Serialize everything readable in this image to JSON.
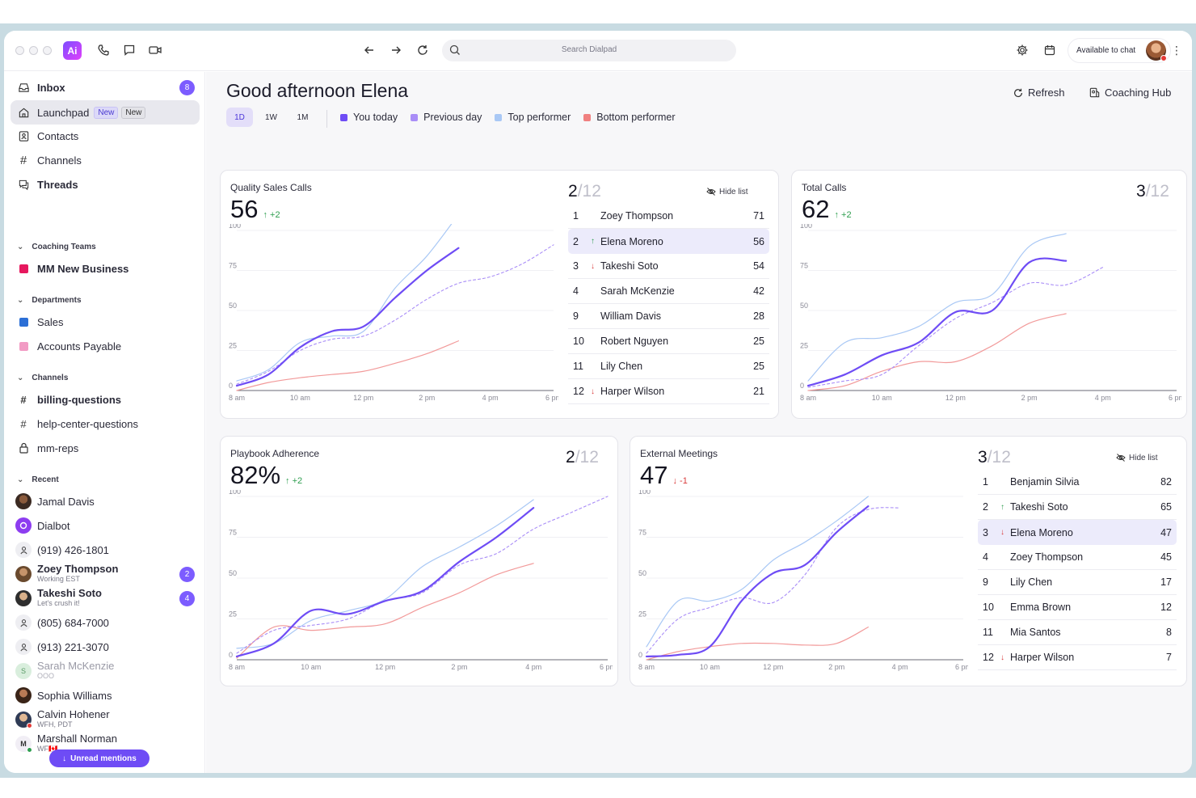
{
  "topbar": {
    "search_placeholder": "Search Dialpad",
    "status_label": "Available to chat",
    "logo_text": "Ai"
  },
  "sidebar": {
    "inbox": {
      "label": "Inbox",
      "badge": "8"
    },
    "launchpad": {
      "label": "Launchpad",
      "pill1": "New",
      "pill2": "New"
    },
    "contacts": "Contacts",
    "channels_top": "Channels",
    "threads": "Threads",
    "coaching_section": "Coaching Teams",
    "coaching_item": "MM New Business",
    "departments_section": "Departments",
    "dept_sales": "Sales",
    "dept_ap": "Accounts Payable",
    "channels_section": "Channels",
    "ch1": "billing-questions",
    "ch2": "help-center-questions",
    "ch3": "mm-reps",
    "recent_section": "Recent",
    "recent": [
      {
        "name": "Jamal Davis"
      },
      {
        "name": "Dialbot"
      },
      {
        "name": "(919) 426-1801"
      },
      {
        "name": "Zoey Thompson",
        "sub": "Working EST",
        "badge": "2"
      },
      {
        "name": "Takeshi Soto",
        "sub": "Let's crush it!",
        "badge": "4"
      },
      {
        "name": "(805) 684-7000"
      },
      {
        "name": "(913) 221-3070"
      },
      {
        "name": "Sarah McKenzie",
        "sub": "OOO"
      },
      {
        "name": "Sophia Williams"
      },
      {
        "name": "Calvin Hohener",
        "sub": "WFH, PDT"
      },
      {
        "name": "Marshall Norman",
        "sub": "WF🇨🇦"
      }
    ],
    "unread_button": "Unread mentions"
  },
  "main": {
    "greeting": "Good afternoon Elena",
    "refresh": "Refresh",
    "coaching_hub": "Coaching Hub",
    "ranges": [
      "1D",
      "1W",
      "1M"
    ],
    "selected_range": "1D",
    "legend": [
      {
        "label": "You today",
        "color": "#6e4cf5"
      },
      {
        "label": "Previous day",
        "color": "#a98df7"
      },
      {
        "label": "Top performer",
        "color": "#a9c8f5"
      },
      {
        "label": "Bottom performer",
        "color": "#f08080"
      }
    ]
  },
  "cards": {
    "qsc": {
      "title": "Quality Sales Calls",
      "value": "56",
      "delta": "+2",
      "rank": "2",
      "rank_total": "/12",
      "hide_list": "Hide list",
      "list": [
        {
          "rank": "1",
          "arrow": "",
          "name": "Zoey Thompson",
          "score": "71"
        },
        {
          "rank": "2",
          "arrow": "↑",
          "name": "Elena Moreno",
          "score": "56",
          "highlight": true
        },
        {
          "rank": "3",
          "arrow": "↓",
          "name": "Takeshi Soto",
          "score": "54"
        },
        {
          "rank": "4",
          "arrow": "",
          "name": "Sarah McKenzie",
          "score": "42"
        },
        {
          "rank": "9",
          "arrow": "",
          "name": "William Davis",
          "score": "28"
        },
        {
          "rank": "10",
          "arrow": "",
          "name": "Robert Nguyen",
          "score": "25"
        },
        {
          "rank": "11",
          "arrow": "",
          "name": "Lily Chen",
          "score": "25"
        },
        {
          "rank": "12",
          "arrow": "↓",
          "name": "Harper Wilson",
          "score": "21"
        }
      ]
    },
    "tc": {
      "title": "Total Calls",
      "value": "62",
      "delta": "+2",
      "rank": "3",
      "rank_total": "/12"
    },
    "pa": {
      "title": "Playbook Adherence",
      "value": "82%",
      "delta": "+2",
      "rank": "2",
      "rank_total": "/12"
    },
    "em": {
      "title": "External Meetings",
      "value": "47",
      "delta": "-1",
      "rank": "3",
      "rank_total": "/12",
      "hide_list": "Hide list",
      "list": [
        {
          "rank": "1",
          "arrow": "",
          "name": "Benjamin Silvia",
          "score": "82"
        },
        {
          "rank": "2",
          "arrow": "↑",
          "name": "Takeshi Soto",
          "score": "65"
        },
        {
          "rank": "3",
          "arrow": "↓",
          "name": "Elena Moreno",
          "score": "47",
          "highlight": true
        },
        {
          "rank": "4",
          "arrow": "",
          "name": "Zoey Thompson",
          "score": "45"
        },
        {
          "rank": "9",
          "arrow": "",
          "name": "Lily Chen",
          "score": "17"
        },
        {
          "rank": "10",
          "arrow": "",
          "name": "Emma Brown",
          "score": "12"
        },
        {
          "rank": "11",
          "arrow": "",
          "name": "Mia Santos",
          "score": "8"
        },
        {
          "rank": "12",
          "arrow": "↓",
          "name": "Harper Wilson",
          "score": "7"
        }
      ]
    }
  },
  "chart_data": [
    {
      "type": "line",
      "id": "qsc",
      "x": [
        "8 am",
        "9 am",
        "10 am",
        "11 am",
        "12 pm",
        "1 pm",
        "2 pm",
        "3 pm",
        "4 pm",
        "5 pm",
        "6 pm"
      ],
      "x_ticks": [
        "8 am",
        "10 am",
        "12 pm",
        "2 pm",
        "4 pm",
        "6 pm"
      ],
      "y_ticks": [
        "0",
        "25",
        "50",
        "75",
        "100"
      ],
      "ylim": [
        0,
        100
      ],
      "series": [
        {
          "name": "You today",
          "values": [
            3,
            10,
            27,
            37,
            40,
            58,
            75,
            89,
            null,
            null,
            null
          ]
        },
        {
          "name": "Previous day",
          "values": [
            4,
            12,
            25,
            32,
            34,
            44,
            57,
            67,
            71,
            79,
            91
          ]
        },
        {
          "name": "Top performer",
          "values": [
            6,
            13,
            30,
            34,
            37,
            64,
            84,
            110,
            null,
            null,
            null
          ]
        },
        {
          "name": "Bottom performer",
          "values": [
            0,
            5,
            8,
            10,
            12,
            17,
            23,
            31,
            null,
            null,
            null
          ]
        }
      ]
    },
    {
      "type": "line",
      "id": "tc",
      "x": [
        "8 am",
        "9 am",
        "10 am",
        "11 am",
        "12 pm",
        "1 pm",
        "2 pm",
        "3 pm",
        "4 pm",
        "5 pm",
        "6 pm"
      ],
      "x_ticks": [
        "8 am",
        "10 am",
        "12 pm",
        "2 pm",
        "4 pm",
        "6 pm"
      ],
      "y_ticks": [
        "0",
        "25",
        "50",
        "75",
        "100"
      ],
      "ylim": [
        0,
        100
      ],
      "series": [
        {
          "name": "You today",
          "values": [
            3,
            10,
            22,
            30,
            49,
            50,
            80,
            81,
            null,
            null,
            null
          ]
        },
        {
          "name": "Previous day",
          "values": [
            2,
            6,
            10,
            28,
            45,
            55,
            67,
            66,
            77,
            null,
            null
          ]
        },
        {
          "name": "Top performer",
          "values": [
            6,
            30,
            33,
            40,
            55,
            60,
            90,
            98,
            null,
            null,
            null
          ]
        },
        {
          "name": "Bottom performer",
          "values": [
            0,
            3,
            12,
            18,
            18,
            28,
            42,
            48,
            null,
            null,
            null
          ]
        }
      ]
    },
    {
      "type": "line",
      "id": "pa",
      "x": [
        "8 am",
        "9 am",
        "10 am",
        "11 am",
        "12 pm",
        "1 pm",
        "2 pm",
        "3 pm",
        "4 pm",
        "5 pm",
        "6 pm"
      ],
      "x_ticks": [
        "8 am",
        "10 am",
        "12 pm",
        "2 pm",
        "4 pm",
        "6 pm"
      ],
      "y_ticks": [
        "0",
        "25",
        "50",
        "75",
        "100"
      ],
      "ylim": [
        0,
        100
      ],
      "series": [
        {
          "name": "You today",
          "values": [
            2,
            10,
            30,
            28,
            36,
            42,
            60,
            75,
            93,
            null,
            null
          ]
        },
        {
          "name": "Previous day",
          "values": [
            4,
            18,
            21,
            25,
            36,
            41,
            58,
            65,
            80,
            90,
            100
          ]
        },
        {
          "name": "Top performer",
          "values": [
            7,
            10,
            24,
            30,
            37,
            57,
            69,
            82,
            98,
            null,
            null
          ]
        },
        {
          "name": "Bottom performer",
          "values": [
            1,
            20,
            18,
            20,
            22,
            32,
            41,
            52,
            59,
            null,
            null
          ]
        }
      ]
    },
    {
      "type": "line",
      "id": "em",
      "x": [
        "8 am",
        "9 am",
        "10 am",
        "11 am",
        "12 pm",
        "1 pm",
        "2 pm",
        "3 pm",
        "4 pm",
        "5 pm",
        "6 pm"
      ],
      "x_ticks": [
        "8 am",
        "10 am",
        "12 pm",
        "2 pm",
        "4 pm",
        "6 pm"
      ],
      "y_ticks": [
        "0",
        "25",
        "50",
        "75",
        "100"
      ],
      "ylim": [
        0,
        100
      ],
      "series": [
        {
          "name": "You today",
          "values": [
            2,
            3,
            8,
            36,
            53,
            58,
            78,
            94,
            null,
            null,
            null
          ]
        },
        {
          "name": "Previous day",
          "values": [
            4,
            25,
            32,
            38,
            35,
            52,
            81,
            92,
            93,
            null,
            null
          ]
        },
        {
          "name": "Top performer",
          "values": [
            8,
            36,
            36,
            43,
            61,
            72,
            85,
            100,
            null,
            null,
            null
          ]
        },
        {
          "name": "Bottom performer",
          "values": [
            0,
            5,
            8,
            10,
            10,
            9,
            10,
            20,
            null,
            null,
            null
          ]
        }
      ]
    }
  ]
}
